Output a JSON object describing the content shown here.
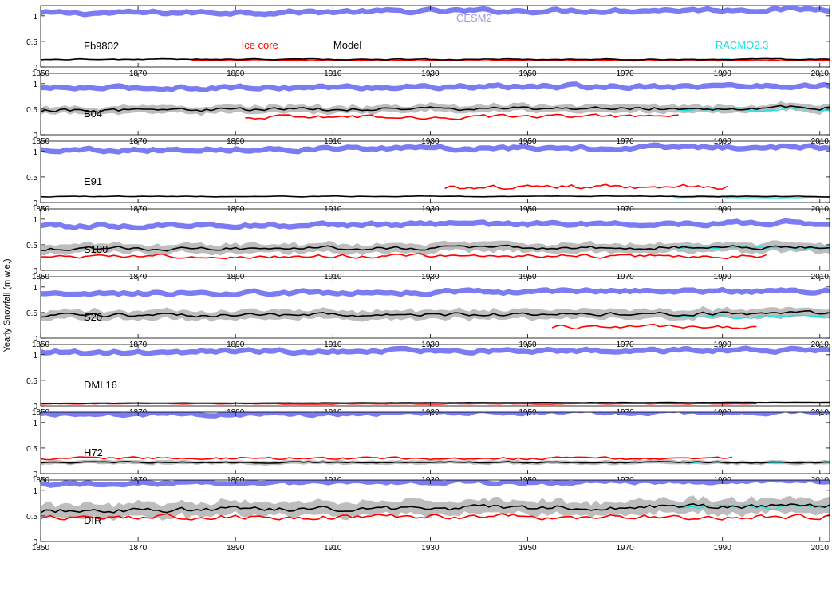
{
  "chart_data": {
    "type": "line",
    "ylabel": "Yearly Snowfall (m w.e.)",
    "xlim": [
      1850,
      2012
    ],
    "xticks": [
      1850,
      1870,
      1890,
      1910,
      1930,
      1950,
      1970,
      1990,
      2010
    ],
    "colors": {
      "cesm2": "#7b7bf2",
      "ice_core": "#ff0000",
      "model": "#000000",
      "model_band": "#bdbdbd",
      "racmo": "#19e0e0"
    },
    "annotations": [
      {
        "text": "CESM2",
        "panel": 0,
        "x": 1939,
        "y": 0.95,
        "color": "#9a9ae6"
      },
      {
        "text": "Ice core",
        "panel": 0,
        "x": 1895,
        "y": 0.42,
        "color": "#ff0000"
      },
      {
        "text": "Model",
        "panel": 0,
        "x": 1913,
        "y": 0.42,
        "color": "#000000"
      },
      {
        "text": "RACMO2.3",
        "panel": 0,
        "x": 1994,
        "y": 0.42,
        "color": "#19e0e0"
      }
    ],
    "panels": [
      {
        "site": "Fb9802",
        "ylim": [
          0,
          1.2
        ],
        "yticks": [
          0,
          0.5,
          1
        ],
        "cesm": {
          "mean": 1.05,
          "width": 0.1,
          "trend": 0.08
        },
        "model": {
          "mean": 0.15,
          "amp": 0.015,
          "band": 0.015,
          "start": 1850,
          "end": 2012,
          "trend": 0.0
        },
        "core": {
          "mean": 0.13,
          "amp": 0.015,
          "start": 1881,
          "end": 2012
        },
        "racmo": {
          "mean": 0.15,
          "start": 1980,
          "end": 2012
        }
      },
      {
        "site": "B04",
        "ylim": [
          0,
          1.2
        ],
        "yticks": [
          0,
          0.5,
          1
        ],
        "cesm": {
          "mean": 0.91,
          "width": 0.1,
          "trend": 0.05
        },
        "model": {
          "mean": 0.48,
          "amp": 0.05,
          "band": 0.08,
          "start": 1850,
          "end": 2012,
          "trend": 0.05
        },
        "core": {
          "mean": 0.35,
          "amp": 0.05,
          "start": 1892,
          "end": 1981
        },
        "racmo": {
          "mean": 0.5,
          "start": 1980,
          "end": 2012
        }
      },
      {
        "site": "E91",
        "ylim": [
          0,
          1.2
        ],
        "yticks": [
          0,
          0.5,
          1
        ],
        "cesm": {
          "mean": 1.03,
          "width": 0.1,
          "trend": 0.06
        },
        "model": {
          "mean": 0.12,
          "amp": 0.01,
          "band": 0.0,
          "start": 1850,
          "end": 2012,
          "trend": 0.0
        },
        "core": {
          "mean": 0.3,
          "amp": 0.07,
          "start": 1933,
          "end": 1991
        },
        "racmo": {
          "mean": 0.1,
          "start": 1980,
          "end": 2012
        }
      },
      {
        "site": "S100",
        "ylim": [
          0,
          1.2
        ],
        "yticks": [
          0,
          0.5,
          1
        ],
        "cesm": {
          "mean": 0.86,
          "width": 0.1,
          "trend": 0.07
        },
        "model": {
          "mean": 0.42,
          "amp": 0.05,
          "band": 0.1,
          "start": 1850,
          "end": 2012,
          "trend": 0.04
        },
        "core": {
          "mean": 0.28,
          "amp": 0.05,
          "start": 1850,
          "end": 1999
        },
        "racmo": {
          "mean": 0.45,
          "start": 1980,
          "end": 2012
        }
      },
      {
        "site": "S20",
        "ylim": [
          0,
          1.2
        ],
        "yticks": [
          0,
          0.5,
          1
        ],
        "cesm": {
          "mean": 0.86,
          "width": 0.1,
          "trend": 0.07
        },
        "model": {
          "mean": 0.44,
          "amp": 0.05,
          "band": 0.1,
          "start": 1850,
          "end": 2012,
          "trend": 0.04
        },
        "core": {
          "mean": 0.22,
          "amp": 0.05,
          "start": 1955,
          "end": 1997
        },
        "racmo": {
          "mean": 0.42,
          "start": 1980,
          "end": 2012
        }
      },
      {
        "site": "DML16",
        "ylim": [
          0,
          1.2
        ],
        "yticks": [
          0,
          0.5,
          1
        ],
        "cesm": {
          "mean": 1.05,
          "width": 0.1,
          "trend": 0.05
        },
        "model": {
          "mean": 0.05,
          "amp": 0.005,
          "band": 0.0,
          "start": 1850,
          "end": 2012,
          "trend": 0.02
        },
        "core": {
          "mean": 0.04,
          "amp": 0.01,
          "start": 1850,
          "end": 1997
        },
        "racmo": {
          "mean": 0.05,
          "start": 1980,
          "end": 2012
        }
      },
      {
        "site": "H72",
        "ylim": [
          0,
          1.2
        ],
        "yticks": [
          0,
          0.5,
          1
        ],
        "cesm": {
          "mean": 1.16,
          "width": 0.1,
          "trend": 0.06
        },
        "model": {
          "mean": 0.22,
          "amp": 0.02,
          "band": 0.04,
          "start": 1850,
          "end": 2012,
          "trend": 0.0
        },
        "core": {
          "mean": 0.3,
          "amp": 0.035,
          "start": 1850,
          "end": 1992
        },
        "racmo": {
          "mean": 0.22,
          "start": 1980,
          "end": 2012
        }
      },
      {
        "site": "DIR",
        "ylim": [
          0,
          1.2
        ],
        "yticks": [
          0,
          0.5,
          1
        ],
        "cesm": {
          "mean": 1.12,
          "width": 0.1,
          "trend": 0.08
        },
        "model": {
          "mean": 0.6,
          "amp": 0.07,
          "band": 0.15,
          "start": 1850,
          "end": 2012,
          "trend": 0.1
        },
        "core": {
          "mean": 0.48,
          "amp": 0.07,
          "start": 1850,
          "end": 2012
        },
        "racmo": {
          "mean": 0.68,
          "start": 1980,
          "end": 2012
        }
      }
    ]
  }
}
